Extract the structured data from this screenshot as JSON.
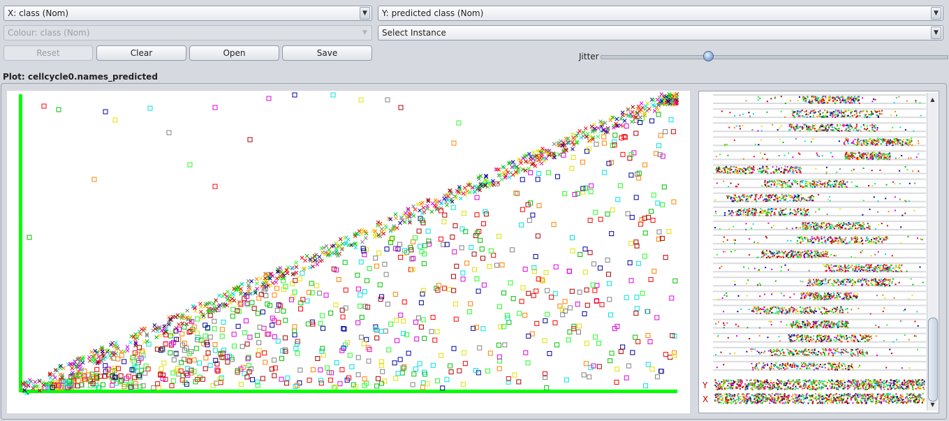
{
  "controls": {
    "x_axis": "X: class (Nom)",
    "y_axis": "Y: predicted class (Nom)",
    "colour": "Colour: class (Nom)",
    "select_instance": "Select Instance",
    "reset_label": "Reset",
    "clear_label": "Clear",
    "open_label": "Open",
    "save_label": "Save",
    "jitter_label": "Jitter",
    "jitter_level": 0.31
  },
  "plot": {
    "title": "Plot: cellcycle0.names_predicted",
    "axis_color": "#00ff00",
    "matrix_y_label": "Y",
    "matrix_x_label": "X"
  },
  "chart_data": {
    "type": "scatter",
    "title": "",
    "xlabel": "",
    "ylabel": "",
    "markers": {
      "correct": "cross",
      "incorrect": "square"
    },
    "palette": [
      "#ff0000",
      "#00c000",
      "#0000a0",
      "#00e0e0",
      "#e000e0",
      "#e0e000",
      "#808080",
      "#b00000",
      "#20ff20",
      "#ff8000"
    ]
  }
}
